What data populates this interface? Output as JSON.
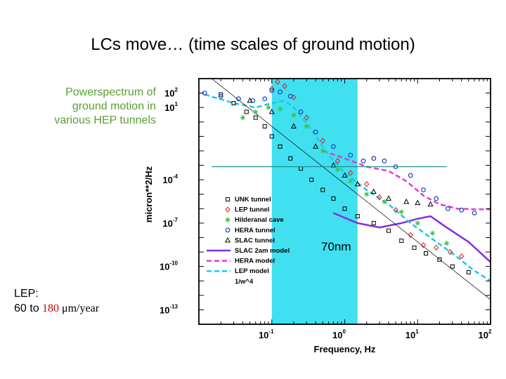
{
  "slide": {
    "title": "LCs move… (time scales of ground motion)",
    "caption_lines": [
      "Powerspectrum of",
      "ground motion in",
      "various HEP tunnels"
    ],
    "lep_note": {
      "line1": "LEP:",
      "prefix": "60 to ",
      "highlight": "180",
      "unit": " μm/year"
    }
  },
  "chart_data": {
    "type": "scatter",
    "xlabel": "Frequency, Hz",
    "ylabel": "micron**2/Hz",
    "x_scale": "log",
    "y_scale": "log",
    "xlim": [
      0.01,
      100
    ],
    "ylim": [
      1e-14,
      1000
    ],
    "x_ticks": [
      {
        "base": "10",
        "exp": "-1",
        "value": 0.1
      },
      {
        "base": "10",
        "exp": "0",
        "value": 1
      },
      {
        "base": "10",
        "exp": "1",
        "value": 10
      },
      {
        "base": "10",
        "exp": "2",
        "value": 100
      }
    ],
    "y_ticks": [
      {
        "base": "10",
        "exp": "2",
        "value": 100
      },
      {
        "base": "10",
        "exp": "1",
        "value": 10
      },
      {
        "base": "10",
        "exp": "-4",
        "value": 0.0001
      },
      {
        "base": "10",
        "exp": "-7",
        "value": 1e-07
      },
      {
        "base": "10",
        "exp": "-10",
        "value": 1e-10
      },
      {
        "base": "10",
        "exp": "-13",
        "value": 1e-13
      }
    ],
    "highlight_band": {
      "x_range": [
        0.1,
        1.5
      ],
      "color": "#40e0f0"
    },
    "reference_line": {
      "y": 0.0008,
      "x_range": [
        0.015,
        25
      ],
      "color": "#208a94"
    },
    "annotation": "70nm",
    "legend_placement": "center",
    "series": [
      {
        "name": "UNK tunnel",
        "marker": "square",
        "color": "#000000",
        "points": [
          [
            0.02,
            80
          ],
          [
            0.03,
            20
          ],
          [
            0.045,
            5
          ],
          [
            0.06,
            2
          ],
          [
            0.08,
            0.5
          ],
          [
            0.1,
            0.1
          ],
          [
            0.13,
            0.02
          ],
          [
            0.18,
            0.003
          ],
          [
            0.25,
            0.0006
          ],
          [
            0.35,
            0.0001
          ],
          [
            0.5,
            2e-05
          ],
          [
            0.7,
            5e-06
          ],
          [
            1,
            1e-06
          ],
          [
            1.5,
            3e-07
          ],
          [
            2.5,
            1e-07
          ],
          [
            4,
            3e-08
          ],
          [
            6,
            6e-09
          ],
          [
            9,
            2e-09
          ],
          [
            13,
            8e-10
          ],
          [
            20,
            3e-10
          ],
          [
            30,
            1e-10
          ],
          [
            50,
            4e-11
          ]
        ]
      },
      {
        "name": "LEP tunnel",
        "marker": "diamond",
        "color": "#cc2020",
        "points": [
          [
            0.1,
            200
          ],
          [
            0.12,
            600
          ],
          [
            0.15,
            300
          ],
          [
            0.2,
            50
          ],
          [
            0.3,
            2
          ],
          [
            0.5,
            0.05
          ],
          [
            0.8,
            0.002
          ],
          [
            1.2,
            0.0003
          ],
          [
            2,
            5e-05
          ],
          [
            3,
            6e-06
          ],
          [
            5,
            8e-07
          ],
          [
            8,
            1.5e-08
          ],
          [
            12,
            3e-09
          ],
          [
            18,
            2e-09
          ],
          [
            28,
            1e-09
          ],
          [
            40,
            5e-10
          ]
        ]
      },
      {
        "name": "Hilderanal cave",
        "marker": "star",
        "color": "#3ec43e",
        "points": [
          [
            0.04,
            2
          ],
          [
            0.06,
            5
          ],
          [
            0.09,
            10
          ],
          [
            0.13,
            8
          ],
          [
            0.2,
            3
          ],
          [
            0.3,
            0.5
          ],
          [
            0.5,
            0.01
          ],
          [
            0.8,
            0.0005
          ],
          [
            1.2,
            8e-05
          ],
          [
            2,
            1e-05
          ],
          [
            3.5,
            3e-06
          ],
          [
            6,
            6e-07
          ],
          [
            10,
            1e-07
          ],
          [
            16,
            2e-08
          ],
          [
            25,
            4e-09
          ]
        ]
      },
      {
        "name": "HERA tunnel",
        "marker": "circle",
        "color": "#1a3fbf",
        "points": [
          [
            0.012,
            100
          ],
          [
            0.02,
            60
          ],
          [
            0.035,
            40
          ],
          [
            0.055,
            30
          ],
          [
            0.08,
            40
          ],
          [
            0.1,
            150
          ],
          [
            0.13,
            120
          ],
          [
            0.18,
            60
          ],
          [
            0.25,
            5
          ],
          [
            0.4,
            0.2
          ],
          [
            0.7,
            0.02
          ],
          [
            1.2,
            0.005
          ],
          [
            1.8,
            0.002
          ],
          [
            2.5,
            0.003
          ],
          [
            3.5,
            0.002
          ],
          [
            5,
            0.0008
          ],
          [
            8,
            0.0002
          ],
          [
            12,
            2e-05
          ],
          [
            18,
            5e-06
          ],
          [
            26,
            1e-06
          ],
          [
            40,
            8e-07
          ],
          [
            60,
            5e-07
          ]
        ]
      },
      {
        "name": "SLAC tunnel",
        "marker": "triangle",
        "color": "#000000",
        "points": [
          [
            0.05,
            30
          ],
          [
            0.1,
            5
          ],
          [
            0.2,
            0.5
          ],
          [
            0.4,
            0.02
          ],
          [
            0.7,
            0.001
          ],
          [
            1,
            0.0002
          ],
          [
            1.5,
            5e-05
          ],
          [
            2.5,
            1.5e-05
          ],
          [
            4,
            5e-06
          ],
          [
            7,
            3e-06
          ],
          [
            10,
            2.5e-06
          ],
          [
            15,
            2e-06
          ]
        ]
      },
      {
        "name": "SLAC 2am model",
        "line": "solid",
        "color": "#8a2be2",
        "points": [
          [
            0.7,
            5e-07
          ],
          [
            1.5,
            1e-07
          ],
          [
            3,
            5e-08
          ],
          [
            6,
            1e-07
          ],
          [
            10,
            2e-07
          ],
          [
            15,
            3e-07
          ],
          [
            25,
            5e-08
          ],
          [
            50,
            5e-09
          ],
          [
            100,
            2e-10
          ]
        ]
      },
      {
        "name": "HERA model",
        "line": "dashed",
        "color": "#e33bd0",
        "points": [
          [
            0.5,
            0.01
          ],
          [
            1,
            0.003
          ],
          [
            2,
            0.0008
          ],
          [
            4,
            0.0004
          ],
          [
            7,
            8e-05
          ],
          [
            12,
            8e-06
          ],
          [
            20,
            2e-06
          ],
          [
            35,
            1e-06
          ],
          [
            60,
            9e-07
          ],
          [
            100,
            9e-07
          ]
        ]
      },
      {
        "name": "LEP model",
        "line": "dashed",
        "color": "#1ec8e6",
        "points": [
          [
            0.012,
            80
          ],
          [
            0.03,
            20
          ],
          [
            0.06,
            10
          ],
          [
            0.1,
            20
          ],
          [
            0.15,
            30
          ],
          [
            0.2,
            10
          ],
          [
            0.35,
            0.3
          ],
          [
            0.6,
            0.005
          ],
          [
            1,
            0.0003
          ],
          [
            2,
            2e-05
          ],
          [
            4,
            2e-06
          ],
          [
            8,
            1e-07
          ],
          [
            15,
            1e-08
          ],
          [
            30,
            8e-10
          ],
          [
            60,
            5e-11
          ],
          [
            100,
            1e-11
          ]
        ]
      },
      {
        "name": "1/w^4",
        "line": "thin",
        "color": "#000000",
        "points": [
          [
            0.01,
            5000
          ],
          [
            100,
            5e-13
          ]
        ]
      }
    ]
  }
}
